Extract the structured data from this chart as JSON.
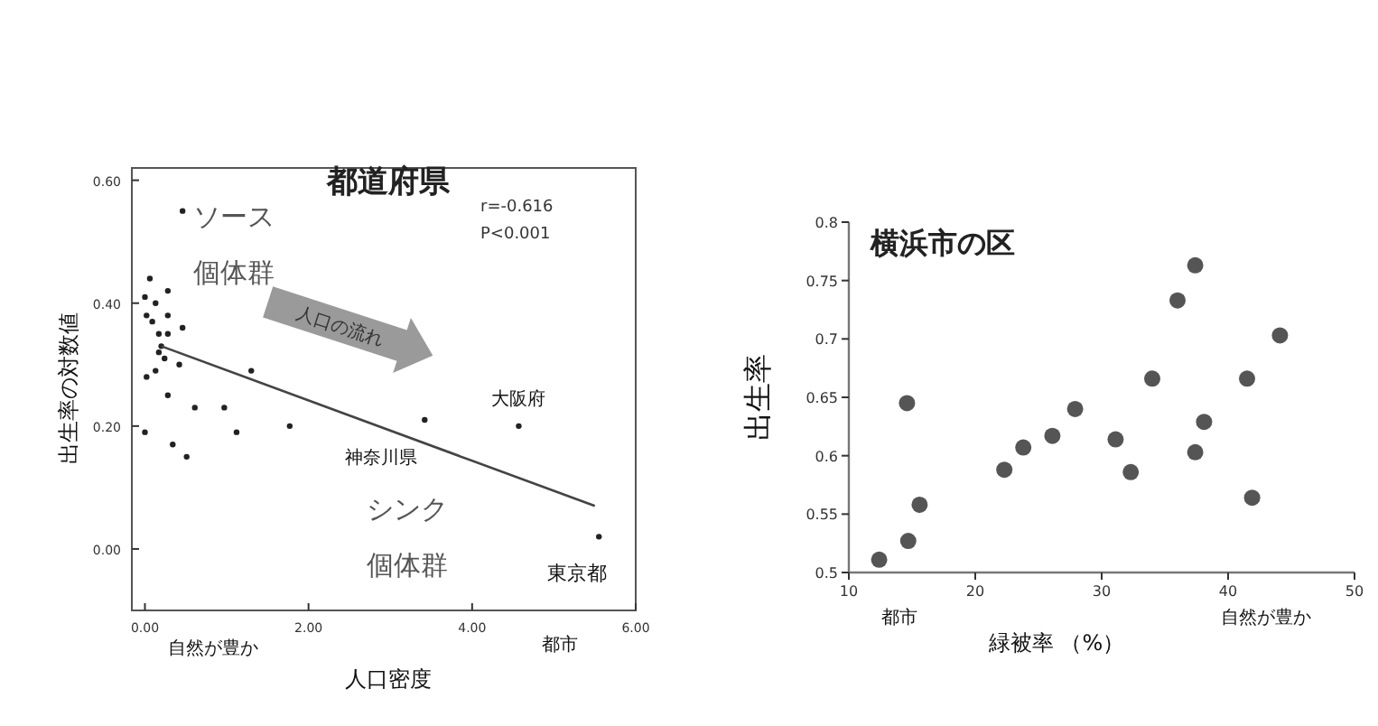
{
  "chart_data": [
    {
      "type": "scatter",
      "title": "都道府県",
      "xlabel": "人口密度",
      "ylabel": "出生率の対数値",
      "xlim": [
        -0.16,
        6
      ],
      "ylim": [
        -0.1,
        0.62
      ],
      "xticks": [
        {
          "value": 0,
          "label": "0.00"
        },
        {
          "value": 2,
          "label": "2.00"
        },
        {
          "value": 4,
          "label": "4.00"
        },
        {
          "value": 6,
          "label": "6.00"
        }
      ],
      "yticks": [
        {
          "value": 0,
          "label": "0.00"
        },
        {
          "value": 0.2,
          "label": "0.20"
        },
        {
          "value": 0.4,
          "label": "0.40"
        },
        {
          "value": 0.6,
          "label": "0.60"
        }
      ],
      "marker": "circle",
      "grid": false,
      "series": [
        {
          "type": "scatter",
          "color": "#222222",
          "x": [
            0.46,
            0.06,
            0.28,
            0.0,
            0.13,
            0.28,
            0.02,
            0.09,
            0.17,
            0.28,
            0.46,
            0.2,
            0.17,
            0.24,
            0.42,
            0.13,
            0.02,
            0.28,
            0.61,
            0.97,
            1.3,
            0.0,
            1.12,
            1.77,
            0.34,
            0.51,
            3.42,
            4.57,
            5.55
          ],
          "values": [
            0.55,
            0.44,
            0.42,
            0.41,
            0.4,
            0.38,
            0.38,
            0.37,
            0.35,
            0.35,
            0.36,
            0.33,
            0.32,
            0.31,
            0.3,
            0.29,
            0.28,
            0.25,
            0.23,
            0.23,
            0.29,
            0.19,
            0.19,
            0.2,
            0.17,
            0.15,
            0.21,
            0.2,
            0.02
          ]
        },
        {
          "type": "line",
          "color": "#444444",
          "marker": "none",
          "x": [
            0.2,
            5.5
          ],
          "values": [
            0.33,
            0.07
          ]
        }
      ],
      "annotations": [
        {
          "text": "大阪府",
          "x": 4.57,
          "y": 0.2
        },
        {
          "text": "神奈川県",
          "x": 3.42,
          "y": 0.21
        },
        {
          "text": "東京都",
          "x": 5.55,
          "y": 0.02
        },
        "ソース",
        "個体群",
        "r=-0.616",
        "P<0.001",
        "人口の流れ",
        "シンク",
        "個体群",
        "自然が豊か",
        "都市"
      ]
    },
    {
      "type": "scatter",
      "title": "横浜市の区",
      "xlabel": "緑被率 （%）",
      "ylabel": "出生率",
      "xlim": [
        10,
        50
      ],
      "ylim": [
        0.5,
        0.8
      ],
      "xticks": [
        10,
        20,
        30,
        40,
        50
      ],
      "yticks": [
        0.5,
        0.55,
        0.6,
        0.65,
        0.7,
        0.75,
        0.8
      ],
      "marker": "circle",
      "grid": false,
      "series": [
        {
          "type": "scatter",
          "color": "#555555",
          "x": [
            12.4,
            14.7,
            14.6,
            15.6,
            22.3,
            23.8,
            26.1,
            27.9,
            31.1,
            32.3,
            34.0,
            36.0,
            37.4,
            37.4,
            38.1,
            41.5,
            41.9,
            44.1
          ],
          "values": [
            0.511,
            0.527,
            0.645,
            0.558,
            0.588,
            0.607,
            0.617,
            0.64,
            0.614,
            0.586,
            0.666,
            0.733,
            0.763,
            0.603,
            0.629,
            0.666,
            0.564,
            0.703
          ]
        }
      ],
      "annotations": [
        "都市",
        "自然が豊か"
      ]
    }
  ]
}
